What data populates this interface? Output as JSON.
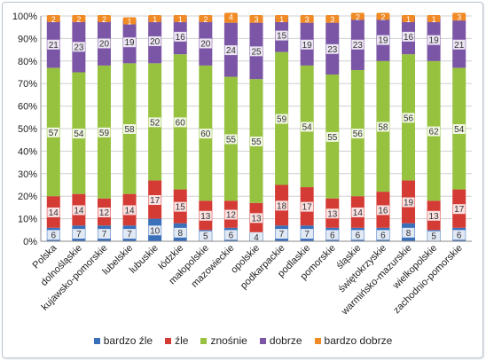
{
  "chart_data": {
    "type": "bar",
    "stacked": true,
    "percent_stacked": true,
    "categories": [
      "Polska",
      "dolnośląskie",
      "kujawsko-pomorskie",
      "lubelskie",
      "lubuskie",
      "łódzkie",
      "małopolskie",
      "mazowieckie",
      "opolskie",
      "podkarpackie",
      "podlaskie",
      "pomorskie",
      "śląskie",
      "świętokrzyskie",
      "warmińsko-mazurskie",
      "wielkopolskie",
      "zachodnio-pomorskie"
    ],
    "series": [
      {
        "name": "bardzo źle",
        "color": "#3a6fba",
        "values": [
          6,
          7,
          7,
          7,
          10,
          8,
          5,
          6,
          4,
          7,
          7,
          6,
          6,
          6,
          8,
          5,
          6
        ]
      },
      {
        "name": "źle",
        "color": "#d43b35",
        "values": [
          14,
          14,
          12,
          14,
          17,
          15,
          13,
          12,
          13,
          18,
          17,
          13,
          14,
          16,
          19,
          13,
          17
        ]
      },
      {
        "name": "znośnie",
        "color": "#97c23f",
        "values": [
          57,
          54,
          59,
          58,
          52,
          60,
          60,
          55,
          55,
          59,
          54,
          55,
          56,
          58,
          56,
          62,
          54
        ]
      },
      {
        "name": "dobrze",
        "color": "#7b55a6",
        "values": [
          21,
          23,
          20,
          19,
          20,
          16,
          20,
          24,
          25,
          15,
          19,
          23,
          23,
          19,
          16,
          19,
          21
        ]
      },
      {
        "name": "bardzo dobrze",
        "color": "#f08a24",
        "values": [
          2,
          2,
          2,
          1,
          1,
          1,
          2,
          4,
          3,
          1,
          3,
          3,
          2,
          2,
          1,
          1,
          3
        ]
      }
    ],
    "yticks": [
      "0%",
      "10%",
      "20%",
      "30%",
      "40%",
      "50%",
      "60%",
      "70%",
      "80%",
      "90%",
      "100%"
    ],
    "ylim": [
      0,
      100
    ],
    "grid": true,
    "legend_position": "bottom",
    "title": "",
    "xlabel": "",
    "ylabel": ""
  }
}
